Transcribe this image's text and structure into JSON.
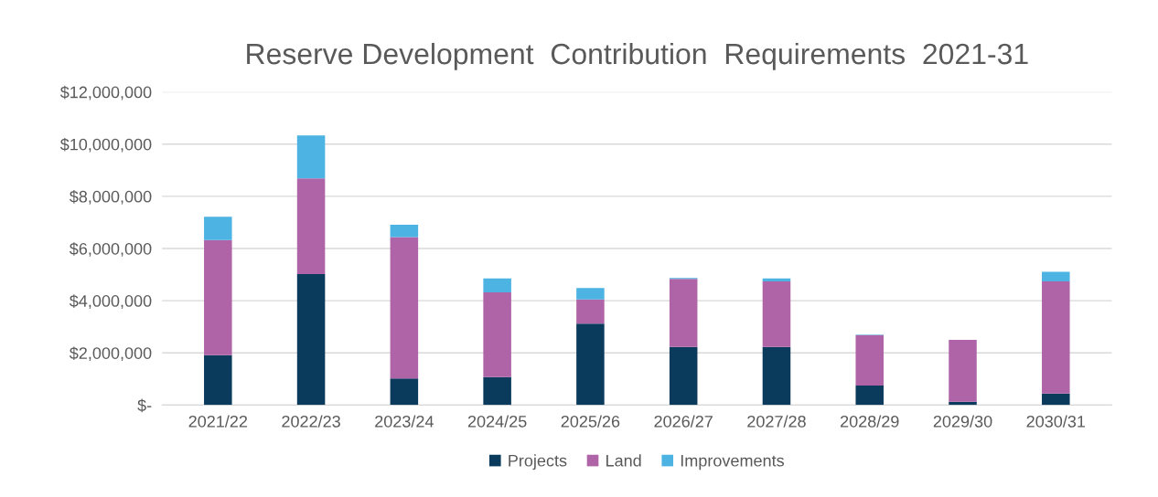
{
  "chart_data": {
    "type": "bar",
    "title": "Reserve Development  Contribution  Requirements  2021-31",
    "categories": [
      "2021/22",
      "2022/23",
      "2023/24",
      "2024/25",
      "2025/26",
      "2026/27",
      "2027/28",
      "2028/29",
      "2029/30",
      "2030/31"
    ],
    "stacked": true,
    "series": [
      {
        "name": "Projects",
        "color": "#0a3a5c",
        "values": [
          1910000,
          5020000,
          1020000,
          1070000,
          3120000,
          2230000,
          2230000,
          750000,
          130000,
          440000
        ]
      },
      {
        "name": "Land",
        "color": "#b064a8",
        "values": [
          4410000,
          3670000,
          5420000,
          3250000,
          930000,
          2610000,
          2510000,
          1930000,
          2370000,
          4300000
        ]
      },
      {
        "name": "Improvements",
        "color": "#4db3e2",
        "values": [
          900000,
          1640000,
          470000,
          530000,
          440000,
          30000,
          110000,
          20000,
          0,
          370000
        ]
      }
    ],
    "ylim": [
      0,
      12000000
    ],
    "yticks": [
      {
        "value": 0,
        "label": "$-"
      },
      {
        "value": 2000000,
        "label": "$2,000,000"
      },
      {
        "value": 4000000,
        "label": "$4,000,000"
      },
      {
        "value": 6000000,
        "label": "$6,000,000"
      },
      {
        "value": 8000000,
        "label": "$8,000,000"
      },
      {
        "value": 10000000,
        "label": "$10,000,000"
      },
      {
        "value": 12000000,
        "label": "$12,000,000"
      }
    ],
    "grid": "y",
    "legend": "bottom"
  }
}
